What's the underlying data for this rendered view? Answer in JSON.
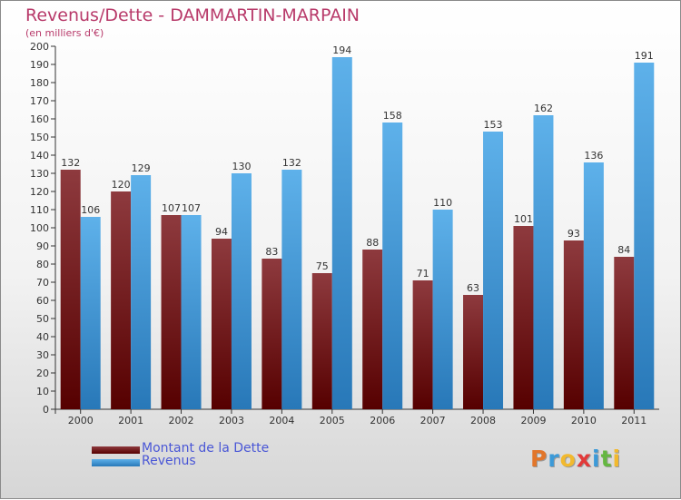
{
  "title": "Revenus/Dette - DAMMARTIN-MARPAIN",
  "subtitle": "(en milliers d'€)",
  "logo": {
    "letters": [
      "P",
      "r",
      "o",
      "x",
      "i",
      "t",
      "i"
    ],
    "colors": [
      "#e2762a",
      "#3c9ad8",
      "#f2b92e",
      "#e23a3a",
      "#3c9ad8",
      "#65b741",
      "#f2b92e"
    ]
  },
  "colors": {
    "dette_top": "#8e3a3e",
    "dette_bottom": "#560000",
    "revenus_top": "#5eb1ea",
    "revenus_bottom": "#2878b8",
    "title": "#b83a6a",
    "legend_text": "#4a57d6"
  },
  "chart_data": {
    "type": "bar",
    "categories": [
      "2000",
      "2001",
      "2002",
      "2003",
      "2004",
      "2005",
      "2006",
      "2007",
      "2008",
      "2009",
      "2010",
      "2011"
    ],
    "series": [
      {
        "name": "Montant de la Dette",
        "values": [
          132,
          120,
          107,
          94,
          83,
          75,
          88,
          71,
          63,
          101,
          93,
          84
        ]
      },
      {
        "name": "Revenus",
        "values": [
          106,
          129,
          107,
          130,
          132,
          194,
          158,
          110,
          153,
          162,
          136,
          191
        ]
      }
    ],
    "yticks": [
      "0",
      "10",
      "20",
      "30",
      "40",
      "50",
      "60",
      "70",
      "80",
      "90",
      "100",
      "110",
      "120",
      "130",
      "140",
      "150",
      "160",
      "170",
      "180",
      "190",
      "200"
    ],
    "ylim": [
      0,
      200
    ],
    "grid": false,
    "legend_position": "bottom-left"
  }
}
